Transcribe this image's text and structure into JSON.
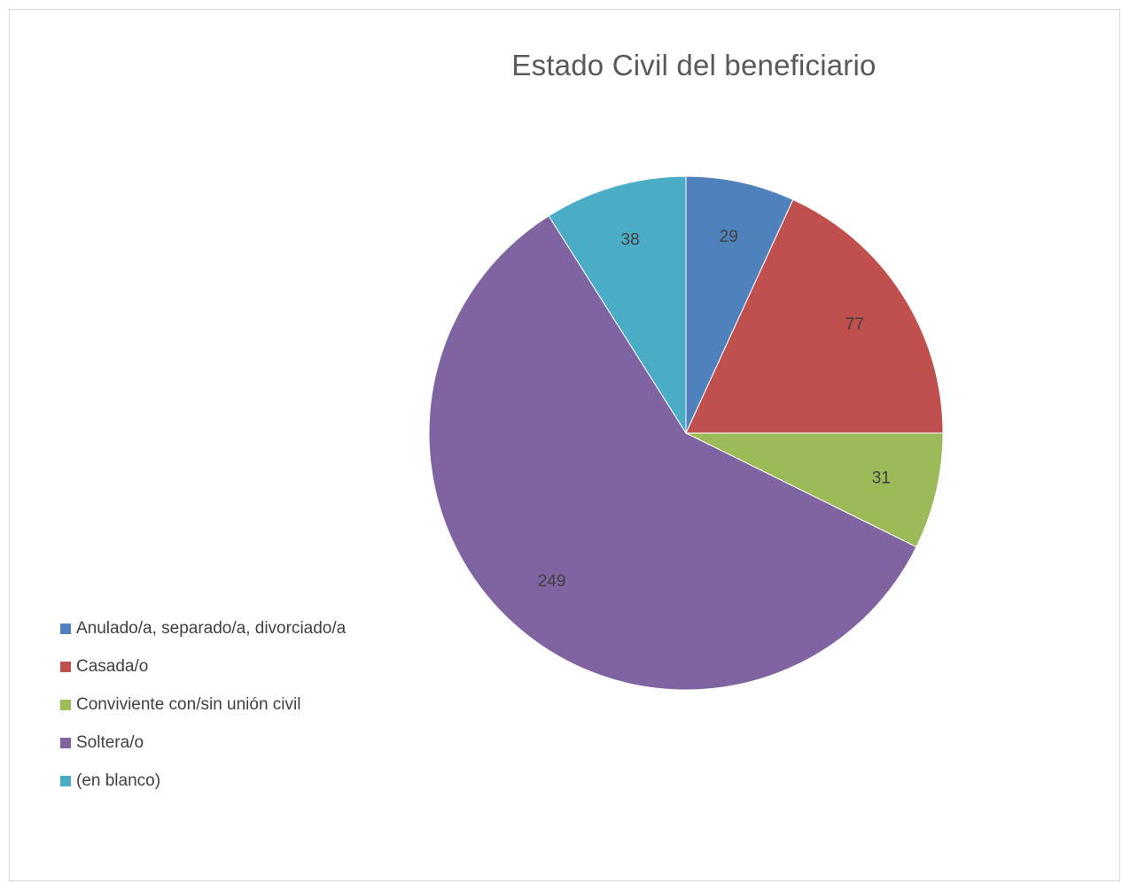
{
  "chart_data": {
    "type": "pie",
    "title": "Estado Civil del beneficiario",
    "categories": [
      "Anulado/a, separado/a, divorciado/a",
      "Casada/o",
      "Conviviente con/sin unión civil",
      "Soltera/o",
      "(en blanco)"
    ],
    "values": [
      29,
      77,
      31,
      249,
      38
    ],
    "colors": [
      "#4f81bd",
      "#c0504d",
      "#9bbb59",
      "#8064a2",
      "#4bacc6"
    ],
    "legend_position": "left",
    "data_labels": true
  }
}
